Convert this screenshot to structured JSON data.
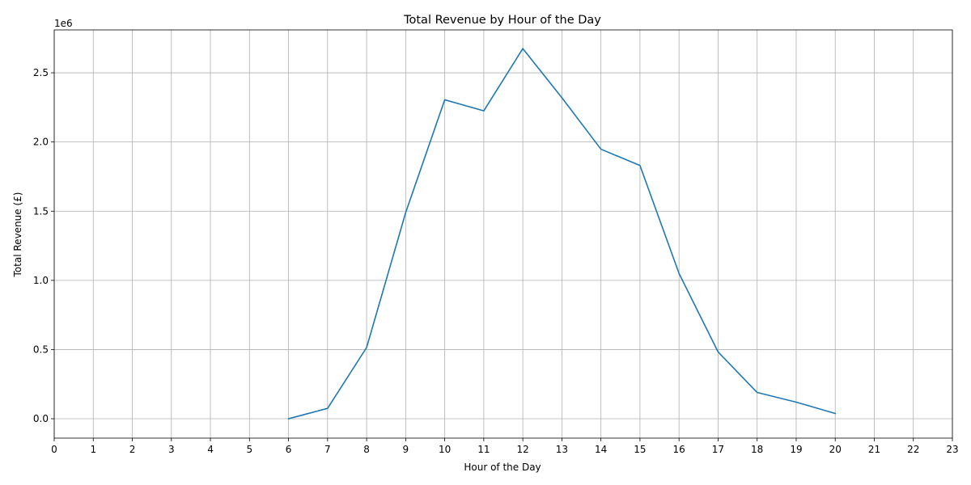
{
  "chart_data": {
    "type": "line",
    "title": "Total Revenue by Hour of the Day",
    "xlabel": "Hour of the Day",
    "ylabel": "Total Revenue (£)",
    "offset_label": "1e6",
    "xlim": [
      0,
      23
    ],
    "ylim": [
      -0.14,
      2.81
    ],
    "x_ticks": [
      0,
      1,
      2,
      3,
      4,
      5,
      6,
      7,
      8,
      9,
      10,
      11,
      12,
      13,
      14,
      15,
      16,
      17,
      18,
      19,
      20,
      21,
      22,
      23
    ],
    "y_ticks": [
      0.0,
      0.5,
      1.0,
      1.5,
      2.0,
      2.5
    ],
    "y_tick_labels": [
      "0.0",
      "0.5",
      "1.0",
      "1.5",
      "2.0",
      "2.5"
    ],
    "grid": true,
    "series": [
      {
        "color": "#1f77b4",
        "x": [
          6,
          7,
          8,
          9,
          10,
          11,
          12,
          13,
          14,
          15,
          16,
          17,
          18,
          19,
          20
        ],
        "y": [
          0.0,
          0.075,
          0.515,
          1.49,
          2.305,
          2.225,
          2.675,
          2.32,
          1.948,
          1.83,
          1.05,
          0.483,
          0.19,
          0.12,
          0.038
        ]
      }
    ]
  }
}
